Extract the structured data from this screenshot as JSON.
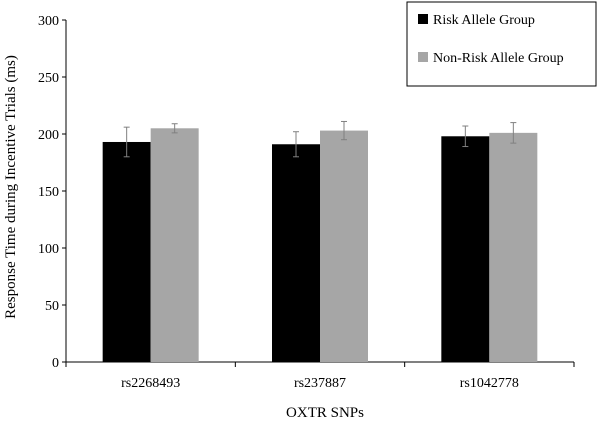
{
  "chart_data": {
    "type": "bar",
    "xlabel": "OXTR SNPs",
    "ylabel": "Response Time during Incentive Trials (ms)",
    "categories": [
      "rs2268493",
      "rs237887",
      "rs1042778"
    ],
    "ylim": [
      0,
      300
    ],
    "yticks": [
      0,
      50,
      100,
      150,
      200,
      250,
      300
    ],
    "grid": false,
    "legend_position": "top-right",
    "series": [
      {
        "name": "Risk Allele Group",
        "color": "#000000",
        "values": [
          193,
          191,
          198
        ],
        "errors": [
          13,
          11,
          9
        ]
      },
      {
        "name": "Non-Risk Allele Group",
        "color": "#a6a6a6",
        "values": [
          205,
          203,
          201
        ],
        "errors": [
          4,
          8,
          9
        ]
      }
    ]
  }
}
